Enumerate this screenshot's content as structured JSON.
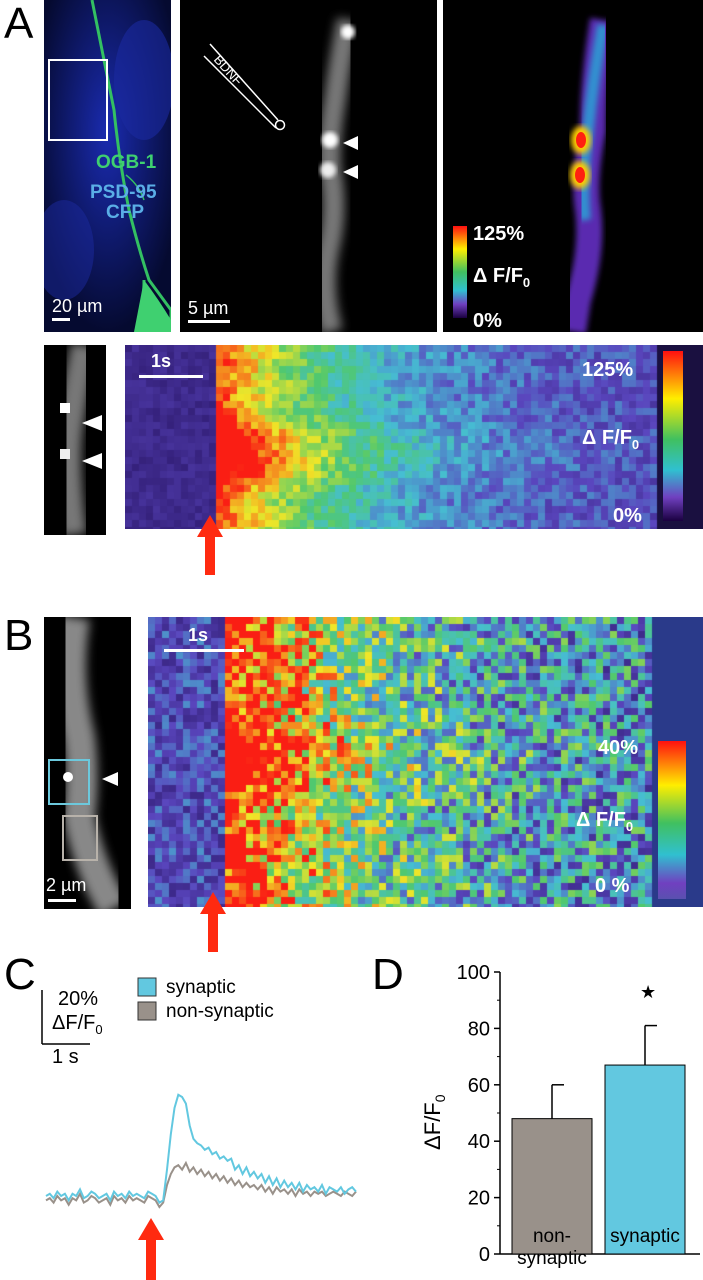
{
  "panels": {
    "A": {
      "letter": "A",
      "overview": {
        "label_ogb": "OGB-1",
        "label_psd": "PSD-95",
        "label_cfp": "CFP",
        "scale": "20 µm"
      },
      "zoom": {
        "pipette": "BDNF",
        "scale": "5 µm"
      },
      "ratio": {
        "cbar_max": "125%",
        "cbar_mid": "Δ F/F",
        "cbar_sub": "0",
        "cbar_min": "0%"
      },
      "kymo": {
        "time_scale": "1s",
        "cbar_max": "125%",
        "cbar_mid": "Δ F/F",
        "cbar_sub": "0",
        "cbar_min": "0%"
      }
    },
    "B": {
      "letter": "B",
      "dendrite": {
        "scale": "2 µm"
      },
      "kymo": {
        "time_scale": "1s",
        "cbar_max": "40%",
        "cbar_mid": "Δ F/F",
        "cbar_sub": "0",
        "cbar_min": "0 %"
      }
    },
    "C": {
      "letter": "C",
      "legend": [
        {
          "name": "synaptic",
          "color": "#62c8e0"
        },
        {
          "name": "non-synaptic",
          "color": "#99918a"
        }
      ],
      "scale_y": "20%",
      "scale_y_unit": "ΔF/F",
      "scale_y_sub": "0",
      "scale_x": "1 s"
    },
    "D": {
      "letter": "D",
      "ylabel": "ΔF/F",
      "ylabel_sub": "0",
      "significance": "★"
    }
  },
  "chart_data": [
    {
      "type": "line",
      "series": [
        {
          "name": "synaptic",
          "color": "#62c8e0",
          "values": [
            0,
            1,
            -1,
            2,
            0,
            1,
            -2,
            1,
            0,
            3,
            -1,
            0,
            2,
            1,
            -1,
            0,
            1,
            -2,
            2,
            0,
            1,
            -1,
            2,
            0,
            1,
            0,
            -1,
            2,
            1,
            0,
            -3,
            -2,
            12,
            28,
            40,
            46,
            45,
            42,
            32,
            26,
            24,
            23,
            21,
            22,
            19,
            20,
            17,
            18,
            16,
            17,
            12,
            14,
            10,
            13,
            9,
            11,
            8,
            10,
            6,
            9,
            5,
            8,
            4,
            7,
            4,
            6,
            3,
            6,
            2,
            5,
            3,
            4,
            2,
            5,
            1,
            4,
            3,
            2,
            4,
            1,
            3,
            4,
            2
          ]
        },
        {
          "name": "non-synaptic",
          "color": "#99918a",
          "values": [
            -2,
            -1,
            -3,
            0,
            -2,
            -1,
            -4,
            -1,
            -2,
            1,
            -3,
            -2,
            0,
            -1,
            -3,
            -2,
            -1,
            -4,
            0,
            -2,
            -1,
            -3,
            0,
            -2,
            -1,
            -2,
            -3,
            0,
            -1,
            -2,
            -5,
            -3,
            5,
            10,
            13,
            14,
            12,
            15,
            11,
            13,
            10,
            12,
            9,
            11,
            8,
            10,
            7,
            9,
            6,
            8,
            5,
            7,
            4,
            6,
            4,
            5,
            3,
            5,
            2,
            4,
            1,
            4,
            2,
            3,
            1,
            3,
            0,
            3,
            1,
            2,
            0,
            2,
            1,
            2,
            0,
            1,
            2,
            1,
            0,
            2,
            1,
            0,
            2
          ]
        }
      ]
    },
    {
      "type": "bar",
      "categories": [
        "non-\nsynaptic",
        "synaptic"
      ],
      "values": [
        48,
        67
      ],
      "errors": [
        12,
        14
      ],
      "colors": [
        "#99918a",
        "#62c8e0"
      ],
      "ylabel": "ΔF/F0",
      "ylim": [
        0,
        100
      ],
      "yticks": [
        0,
        20,
        40,
        60,
        80,
        100
      ]
    }
  ]
}
